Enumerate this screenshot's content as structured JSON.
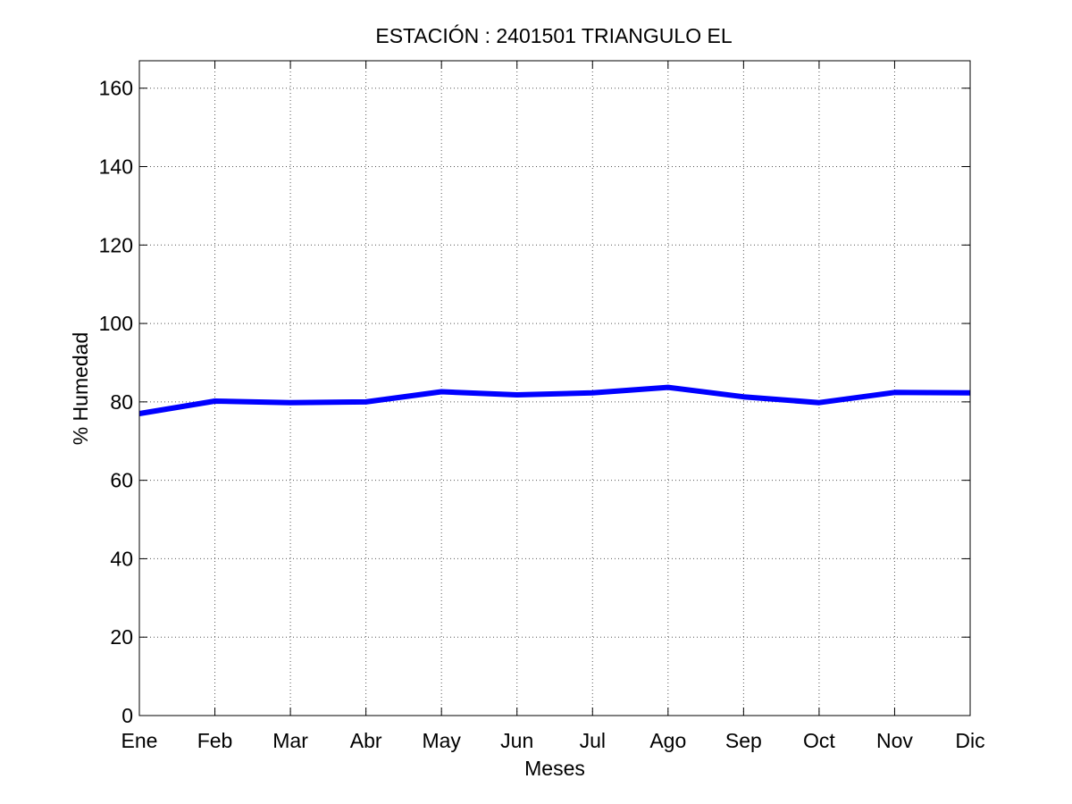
{
  "chart_data": {
    "type": "line",
    "title": "ESTACIÓN :  2401501  TRIANGULO EL",
    "xlabel": "Meses",
    "ylabel": "% Humedad",
    "categories": [
      "Ene",
      "Feb",
      "Mar",
      "Abr",
      "May",
      "Jun",
      "Jul",
      "Ago",
      "Sep",
      "Oct",
      "Nov",
      "Dic"
    ],
    "series": [
      {
        "values": [
          77,
          80.2,
          79.8,
          80,
          82.6,
          81.8,
          82.3,
          83.7,
          81.3,
          79.8,
          82.4,
          82.3
        ]
      }
    ],
    "ylim": [
      0,
      167
    ],
    "yticks": [
      0,
      20,
      40,
      60,
      80,
      100,
      120,
      140,
      160
    ],
    "grid": true,
    "legend": "none",
    "line_color": "#0000ff",
    "axis_color": "#000000",
    "grid_color": "#555555"
  }
}
